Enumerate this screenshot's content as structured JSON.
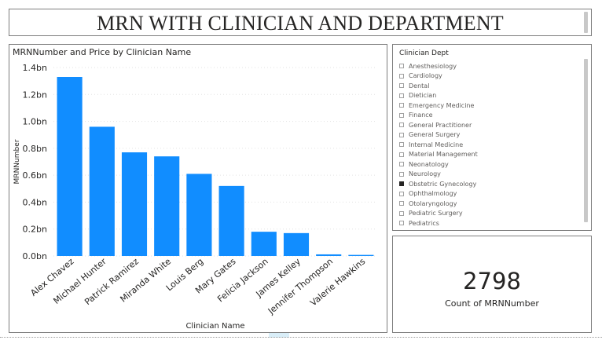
{
  "header": {
    "title": "MRN WITH CLINICIAN AND DEPARTMENT"
  },
  "colors": {
    "bar": "#118DFF",
    "accent_light_blue": "#d9eef8",
    "accent_light_green": "#d8f0dd"
  },
  "chart_data": {
    "type": "bar",
    "title": "MRNNumber and Price by Clinician Name",
    "xlabel": "Clinician Name",
    "ylabel": "MRNNumber",
    "categories": [
      "Alex Chavez",
      "Michael Hunter",
      "Patrick Ramirez",
      "Miranda White",
      "Louis Berg",
      "Mary Gates",
      "Felicia Jackson",
      "James Kelley",
      "Jennifer Thompson",
      "Valerie Hawkins"
    ],
    "values": [
      1.33,
      0.96,
      0.77,
      0.74,
      0.61,
      0.52,
      0.18,
      0.17,
      0.012,
      0.008
    ],
    "ylim": [
      0,
      1.4
    ],
    "yticks": [
      "0.0bn",
      "0.2bn",
      "0.4bn",
      "0.6bn",
      "0.8bn",
      "1.0bn",
      "1.2bn",
      "1.4bn"
    ],
    "grid": true
  },
  "slicer": {
    "title": "Clinician Dept",
    "items": [
      {
        "label": "Anesthesiology",
        "checked": false
      },
      {
        "label": "Cardiology",
        "checked": false
      },
      {
        "label": "Dental",
        "checked": false
      },
      {
        "label": "Dietician",
        "checked": false
      },
      {
        "label": "Emergency Medicine",
        "checked": false
      },
      {
        "label": "Finance",
        "checked": false
      },
      {
        "label": "General Practitioner",
        "checked": false
      },
      {
        "label": "General Surgery",
        "checked": false
      },
      {
        "label": "Internal Medicine",
        "checked": false
      },
      {
        "label": "Material Management",
        "checked": false
      },
      {
        "label": "Neonatology",
        "checked": false
      },
      {
        "label": "Neurology",
        "checked": false
      },
      {
        "label": "Obstetric Gynecology",
        "checked": true
      },
      {
        "label": "Ophthalmology",
        "checked": false
      },
      {
        "label": "Otolaryngology",
        "checked": false
      },
      {
        "label": "Pediatric Surgery",
        "checked": false
      },
      {
        "label": "Pediatrics",
        "checked": false
      }
    ]
  },
  "card": {
    "value": "2798",
    "label": "Count of MRNNumber"
  }
}
